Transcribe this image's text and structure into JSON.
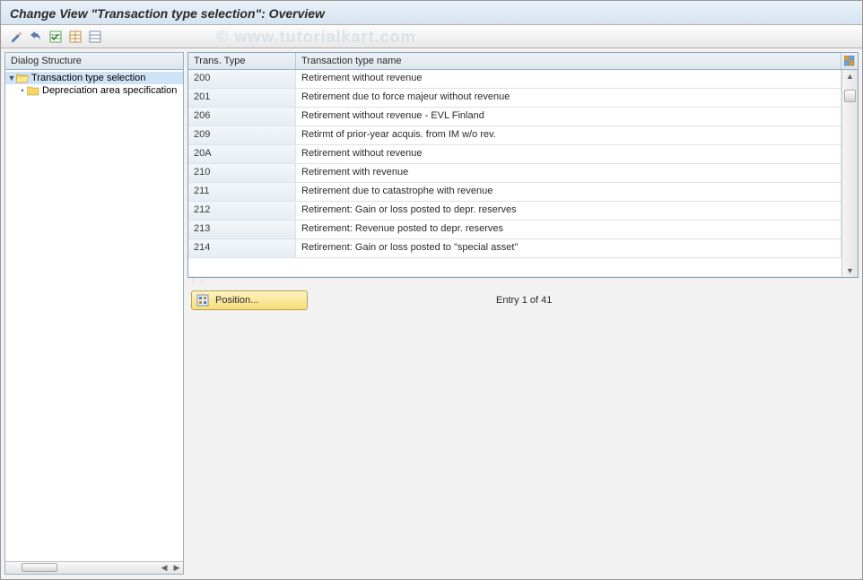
{
  "title": "Change View \"Transaction type selection\": Overview",
  "watermark": "© www.tutorialkart.com",
  "toolbar": {
    "icons": [
      {
        "name": "other-view-icon",
        "title": "Other view",
        "fill": "#5b7da8",
        "glyph": "pencil"
      },
      {
        "name": "undo-icon",
        "title": "Undo",
        "fill": "#5b7da8",
        "glyph": "undo"
      },
      {
        "name": "select-all-icon",
        "title": "Select All",
        "fill": "#5fa45f",
        "glyph": "table-check"
      },
      {
        "name": "select-block-icon",
        "title": "Select Block",
        "fill": "#c28c3a",
        "glyph": "table"
      },
      {
        "name": "deselect-all-icon",
        "title": "Deselect All",
        "fill": "#7a8ea3",
        "glyph": "table-x"
      }
    ]
  },
  "dialog_structure": {
    "header": "Dialog Structure",
    "root": {
      "label": "Transaction type selection",
      "expanded": true,
      "selected": true
    },
    "child": {
      "label": "Depreciation area specification"
    }
  },
  "table": {
    "columns": {
      "type": "Trans. Type",
      "name": "Transaction type name"
    },
    "rows": [
      {
        "type": "200",
        "name": "Retirement without revenue"
      },
      {
        "type": "201",
        "name": "Retirement due to force majeur without revenue"
      },
      {
        "type": "206",
        "name": "Retirement without revenue - EVL Finland"
      },
      {
        "type": "209",
        "name": "Retirmt of prior-year acquis. from IM w/o rev."
      },
      {
        "type": "20A",
        "name": "Retirement without revenue"
      },
      {
        "type": "210",
        "name": "Retirement with revenue"
      },
      {
        "type": "211",
        "name": "Retirement due to catastrophe with revenue"
      },
      {
        "type": "212",
        "name": "Retirement: Gain or loss posted to depr. reserves"
      },
      {
        "type": "213",
        "name": "Retirement: Revenue posted to depr. reserves"
      },
      {
        "type": "214",
        "name": "Retirement: Gain or loss posted to \"special asset\""
      }
    ],
    "empty_rows": 1
  },
  "footer": {
    "position_label": "Position...",
    "entry_text": "Entry 1 of 41"
  },
  "colors": {
    "header_grad_top": "#eef2f6",
    "header_grad_bot": "#dde6ef",
    "border": "#9aafc6"
  }
}
